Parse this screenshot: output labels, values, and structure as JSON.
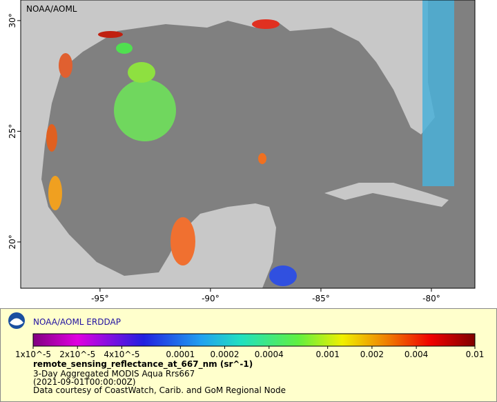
{
  "map": {
    "watermark": "NOAA/AOML",
    "xlim": [
      -98.59,
      -78.03
    ],
    "ylim": [
      17.91,
      30.93
    ],
    "xticks": [
      {
        "value": -95,
        "label": "-95°"
      },
      {
        "value": -90,
        "label": "-90°"
      },
      {
        "value": -85,
        "label": "-85°"
      },
      {
        "value": -80,
        "label": "-80°"
      }
    ],
    "yticks": [
      {
        "value": 20,
        "label": "20°"
      },
      {
        "value": 25,
        "label": "25°"
      },
      {
        "value": 30,
        "label": "30°"
      }
    ]
  },
  "legend": {
    "title": "NOAA/AOML ERDDAP",
    "colorbar": {
      "log": true,
      "lim": [
        1e-05,
        0.01
      ],
      "ticks": [
        {
          "value": 1e-05,
          "label": "1x10^-5"
        },
        {
          "value": 2e-05,
          "label": "2x10^-5"
        },
        {
          "value": 4e-05,
          "label": "4x10^-5"
        },
        0.0001,
        0.0002,
        0.0004,
        0.001,
        0.002,
        0.004,
        0.01
      ]
    },
    "variable": "remote_sensing_reflectance_at_667_nm (sr^-1)",
    "lines": [
      "3-Day Aggregated MODIS Aqua Rrs667",
      "(2021-09-01T00:00:00Z)",
      "Data courtesy of CoastWatch, Carib. and GoM Regional Node"
    ]
  }
}
